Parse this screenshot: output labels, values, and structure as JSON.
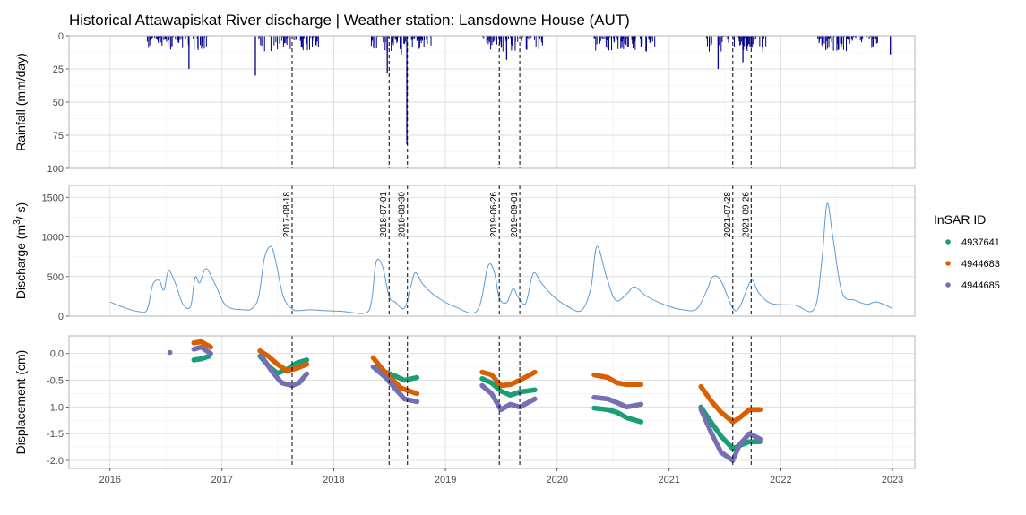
{
  "chart_data": {
    "type": "multi-panel",
    "title": "Historical Attawapiskat River discharge | Weather station: Lansdowne House (AUT)",
    "x_axis": {
      "ticks": [
        "2016",
        "2017",
        "2018",
        "2019",
        "2020",
        "2021",
        "2022",
        "2023"
      ],
      "range": [
        "2015-08-20",
        "2023-03-15"
      ]
    },
    "event_dates": [
      "2017-08-18",
      "2018-07-01",
      "2018-08-30",
      "2019-06-26",
      "2019-09-01",
      "2021-07-28",
      "2021-09-26"
    ],
    "panels": {
      "rainfall": {
        "type": "bar",
        "ylabel": "Rainfall (mm/day)",
        "y_reversed": true,
        "ylim": [
          0,
          100
        ],
        "yticks": [
          "0",
          "25",
          "50",
          "75",
          "100"
        ],
        "color": "#00008B",
        "notable_values": [
          {
            "date": "2016-09-15",
            "value": 25
          },
          {
            "date": "2017-04-20",
            "value": 30
          },
          {
            "date": "2018-06-25",
            "value": 28
          },
          {
            "date": "2018-08-10",
            "value": 14
          },
          {
            "date": "2018-08-28",
            "value": 82
          },
          {
            "date": "2019-07-20",
            "value": 18
          },
          {
            "date": "2021-06-10",
            "value": 25
          },
          {
            "date": "2021-08-30",
            "value": 20
          },
          {
            "date": "2022-12-25",
            "value": 14
          }
        ]
      },
      "discharge": {
        "type": "line",
        "ylabel": "Discharge (m³/s)",
        "ylabel_parts": {
          "pre": "Discharge (m",
          "sup": "3",
          "post": "/ s)"
        },
        "ylim": [
          0,
          1650
        ],
        "yticks": [
          "0",
          "500",
          "1000",
          "1500"
        ],
        "color": "#5B9BD5",
        "points": [
          [
            "2016-01-01",
            180
          ],
          [
            "2016-02-15",
            110
          ],
          [
            "2016-04-01",
            60
          ],
          [
            "2016-05-01",
            80
          ],
          [
            "2016-05-20",
            400
          ],
          [
            "2016-06-10",
            450
          ],
          [
            "2016-06-25",
            330
          ],
          [
            "2016-07-10",
            570
          ],
          [
            "2016-08-01",
            420
          ],
          [
            "2016-08-25",
            160
          ],
          [
            "2016-09-20",
            120
          ],
          [
            "2016-10-05",
            490
          ],
          [
            "2016-10-20",
            420
          ],
          [
            "2016-11-10",
            600
          ],
          [
            "2016-12-10",
            400
          ],
          [
            "2017-01-15",
            130
          ],
          [
            "2017-03-15",
            80
          ],
          [
            "2017-04-10",
            100
          ],
          [
            "2017-05-01",
            250
          ],
          [
            "2017-05-20",
            740
          ],
          [
            "2017-06-10",
            880
          ],
          [
            "2017-06-25",
            700
          ],
          [
            "2017-07-20",
            250
          ],
          [
            "2017-08-18",
            90
          ],
          [
            "2017-09-10",
            70
          ],
          [
            "2017-10-15",
            80
          ],
          [
            "2017-12-01",
            70
          ],
          [
            "2018-02-01",
            60
          ],
          [
            "2018-04-15",
            40
          ],
          [
            "2018-05-05",
            200
          ],
          [
            "2018-05-20",
            690
          ],
          [
            "2018-06-10",
            620
          ],
          [
            "2018-07-01",
            250
          ],
          [
            "2018-07-20",
            180
          ],
          [
            "2018-08-20",
            100
          ],
          [
            "2018-09-10",
            380
          ],
          [
            "2018-09-25",
            550
          ],
          [
            "2018-10-20",
            400
          ],
          [
            "2018-12-01",
            250
          ],
          [
            "2019-02-01",
            120
          ],
          [
            "2019-04-15",
            70
          ],
          [
            "2019-05-20",
            630
          ],
          [
            "2019-06-10",
            550
          ],
          [
            "2019-06-26",
            230
          ],
          [
            "2019-07-20",
            170
          ],
          [
            "2019-08-10",
            350
          ],
          [
            "2019-08-25",
            250
          ],
          [
            "2019-09-20",
            160
          ],
          [
            "2019-10-15",
            540
          ],
          [
            "2019-11-10",
            420
          ],
          [
            "2019-12-20",
            250
          ],
          [
            "2020-02-01",
            130
          ],
          [
            "2020-03-20",
            70
          ],
          [
            "2020-04-20",
            350
          ],
          [
            "2020-05-10",
            880
          ],
          [
            "2020-06-10",
            500
          ],
          [
            "2020-07-10",
            200
          ],
          [
            "2020-08-15",
            280
          ],
          [
            "2020-09-10",
            370
          ],
          [
            "2020-10-20",
            250
          ],
          [
            "2020-12-20",
            140
          ],
          [
            "2021-02-15",
            80
          ],
          [
            "2021-04-01",
            90
          ],
          [
            "2021-05-01",
            300
          ],
          [
            "2021-05-25",
            500
          ],
          [
            "2021-06-20",
            440
          ],
          [
            "2021-07-28",
            100
          ],
          [
            "2021-08-20",
            120
          ],
          [
            "2021-09-26",
            450
          ],
          [
            "2021-10-20",
            300
          ],
          [
            "2021-12-01",
            160
          ],
          [
            "2022-02-15",
            140
          ],
          [
            "2022-04-20",
            90
          ],
          [
            "2022-05-15",
            700
          ],
          [
            "2022-06-01",
            1420
          ],
          [
            "2022-06-20",
            1000
          ],
          [
            "2022-07-20",
            300
          ],
          [
            "2022-09-01",
            200
          ],
          [
            "2022-10-10",
            150
          ],
          [
            "2022-11-10",
            180
          ],
          [
            "2022-12-31",
            100
          ]
        ]
      },
      "displacement": {
        "type": "scatter",
        "ylabel": "Displacement (cm)",
        "ylim": [
          -2.15,
          0.33
        ],
        "yticks": [
          "0.0",
          "-0.5",
          "-1.0",
          "-1.5",
          "-2.0"
        ],
        "legend_title": "InSAR ID",
        "legend_position": "right",
        "series": [
          {
            "name": "4937641",
            "color": "#1B9E77",
            "segments": [
              [
                [
                  "2016-10-01",
                  -0.12
                ],
                [
                  "2016-10-25",
                  -0.1
                ],
                [
                  "2016-11-20",
                  -0.05
                ]
              ],
              [
                [
                  "2017-05-05",
                  -0.05
                ],
                [
                  "2017-06-05",
                  -0.25
                ],
                [
                  "2017-07-01",
                  -0.37
                ],
                [
                  "2017-08-01",
                  -0.3
                ],
                [
                  "2017-09-01",
                  -0.18
                ],
                [
                  "2017-10-05",
                  -0.12
                ]
              ],
              [
                [
                  "2018-05-20",
                  -0.25
                ],
                [
                  "2018-06-20",
                  -0.35
                ],
                [
                  "2018-07-20",
                  -0.42
                ],
                [
                  "2018-08-20",
                  -0.5
                ],
                [
                  "2018-09-30",
                  -0.45
                ]
              ],
              [
                [
                  "2019-05-01",
                  -0.47
                ],
                [
                  "2019-06-01",
                  -0.55
                ],
                [
                  "2019-07-01",
                  -0.7
                ],
                [
                  "2019-08-01",
                  -0.78
                ],
                [
                  "2019-09-01",
                  -0.72
                ],
                [
                  "2019-10-20",
                  -0.68
                ]
              ],
              [
                [
                  "2020-05-01",
                  -1.02
                ],
                [
                  "2020-06-15",
                  -1.05
                ],
                [
                  "2020-07-15",
                  -1.1
                ],
                [
                  "2020-08-15",
                  -1.2
                ],
                [
                  "2020-10-01",
                  -1.28
                ]
              ],
              [
                [
                  "2021-04-15",
                  -1.0
                ],
                [
                  "2021-05-20",
                  -1.3
                ],
                [
                  "2021-06-20",
                  -1.55
                ],
                [
                  "2021-07-28",
                  -1.78
                ],
                [
                  "2021-08-20",
                  -1.72
                ],
                [
                  "2021-09-20",
                  -1.65
                ],
                [
                  "2021-10-25",
                  -1.65
                ]
              ]
            ]
          },
          {
            "name": "4944683",
            "color": "#D95F02",
            "segments": [
              [
                [
                  "2016-10-01",
                  0.2
                ],
                [
                  "2016-10-25",
                  0.22
                ],
                [
                  "2016-11-25",
                  0.12
                ]
              ],
              [
                [
                  "2017-05-05",
                  0.05
                ],
                [
                  "2017-06-01",
                  -0.05
                ],
                [
                  "2017-07-01",
                  -0.2
                ],
                [
                  "2017-08-01",
                  -0.32
                ],
                [
                  "2017-09-01",
                  -0.28
                ],
                [
                  "2017-10-05",
                  -0.2
                ]
              ],
              [
                [
                  "2018-05-10",
                  -0.08
                ],
                [
                  "2018-06-10",
                  -0.3
                ],
                [
                  "2018-07-10",
                  -0.48
                ],
                [
                  "2018-08-10",
                  -0.65
                ],
                [
                  "2018-09-30",
                  -0.75
                ]
              ],
              [
                [
                  "2019-05-01",
                  -0.35
                ],
                [
                  "2019-06-01",
                  -0.4
                ],
                [
                  "2019-07-01",
                  -0.6
                ],
                [
                  "2019-08-01",
                  -0.58
                ],
                [
                  "2019-09-01",
                  -0.5
                ],
                [
                  "2019-10-20",
                  -0.35
                ]
              ],
              [
                [
                  "2020-05-01",
                  -0.4
                ],
                [
                  "2020-06-15",
                  -0.45
                ],
                [
                  "2020-07-15",
                  -0.55
                ],
                [
                  "2020-08-15",
                  -0.58
                ],
                [
                  "2020-10-01",
                  -0.58
                ]
              ],
              [
                [
                  "2021-04-15",
                  -0.62
                ],
                [
                  "2021-05-20",
                  -0.9
                ],
                [
                  "2021-06-20",
                  -1.1
                ],
                [
                  "2021-07-28",
                  -1.28
                ],
                [
                  "2021-08-20",
                  -1.2
                ],
                [
                  "2021-09-20",
                  -1.05
                ],
                [
                  "2021-10-25",
                  -1.05
                ]
              ]
            ]
          },
          {
            "name": "4944685",
            "color": "#7570B3",
            "segments": [
              [
                [
                  "2016-07-15",
                  0.02
                ]
              ],
              [
                [
                  "2016-10-01",
                  0.08
                ],
                [
                  "2016-10-25",
                  0.12
                ],
                [
                  "2016-11-25",
                  0.0
                ]
              ],
              [
                [
                  "2017-05-10",
                  -0.05
                ],
                [
                  "2017-06-15",
                  -0.35
                ],
                [
                  "2017-07-15",
                  -0.55
                ],
                [
                  "2017-08-18",
                  -0.6
                ],
                [
                  "2017-09-10",
                  -0.55
                ],
                [
                  "2017-10-05",
                  -0.38
                ]
              ],
              [
                [
                  "2018-05-10",
                  -0.25
                ],
                [
                  "2018-06-20",
                  -0.45
                ],
                [
                  "2018-07-20",
                  -0.65
                ],
                [
                  "2018-08-20",
                  -0.85
                ],
                [
                  "2018-09-30",
                  -0.9
                ]
              ],
              [
                [
                  "2019-05-01",
                  -0.6
                ],
                [
                  "2019-06-01",
                  -0.75
                ],
                [
                  "2019-07-01",
                  -1.05
                ],
                [
                  "2019-08-01",
                  -0.95
                ],
                [
                  "2019-09-01",
                  -1.0
                ],
                [
                  "2019-10-20",
                  -0.85
                ]
              ],
              [
                [
                  "2020-05-01",
                  -0.82
                ],
                [
                  "2020-06-15",
                  -0.85
                ],
                [
                  "2020-07-15",
                  -0.92
                ],
                [
                  "2020-08-15",
                  -1.0
                ],
                [
                  "2020-10-01",
                  -0.95
                ]
              ],
              [
                [
                  "2021-04-15",
                  -1.05
                ],
                [
                  "2021-05-20",
                  -1.5
                ],
                [
                  "2021-06-20",
                  -1.85
                ],
                [
                  "2021-07-28",
                  -2.0
                ],
                [
                  "2021-08-20",
                  -1.7
                ],
                [
                  "2021-09-20",
                  -1.5
                ],
                [
                  "2021-10-25",
                  -1.6
                ]
              ]
            ]
          }
        ]
      }
    }
  }
}
